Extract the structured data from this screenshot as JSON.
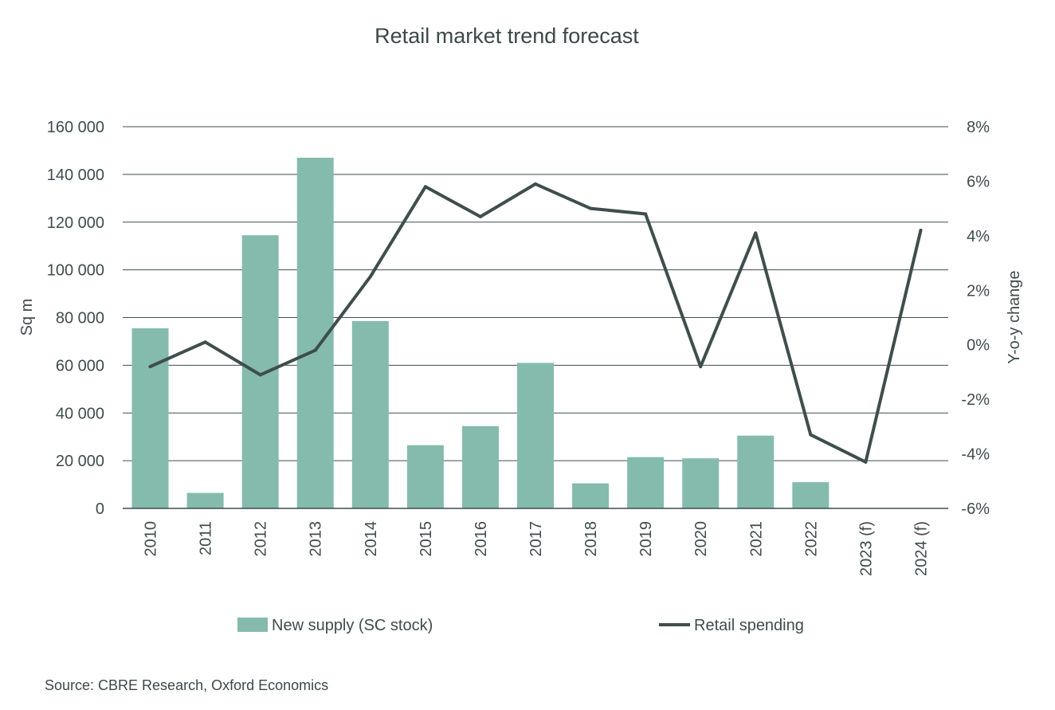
{
  "chart_data": {
    "type": "bar+line",
    "title": "Retail market trend forecast",
    "categories": [
      "2010",
      "2011",
      "2012",
      "2013",
      "2014",
      "2015",
      "2016",
      "2017",
      "2018",
      "2019",
      "2020",
      "2021",
      "2022",
      "2023 (f)",
      "2024 (f)"
    ],
    "series": [
      {
        "name": "New supply (SC stock)",
        "type": "bar",
        "axis": "left",
        "color": "#84bbad",
        "values": [
          75500,
          6500,
          114500,
          147000,
          78500,
          26500,
          34500,
          61000,
          10500,
          21500,
          21000,
          30500,
          11000,
          null,
          null
        ]
      },
      {
        "name": "Retail spending",
        "type": "line",
        "axis": "right",
        "color": "#3f4d4d",
        "values": [
          -0.8,
          0.1,
          -1.1,
          -0.2,
          2.5,
          5.8,
          4.7,
          5.9,
          5.0,
          4.8,
          -0.8,
          4.1,
          -3.3,
          -4.3,
          4.2
        ]
      }
    ],
    "left_axis": {
      "label": "Sq m",
      "ylim": [
        0,
        160000
      ],
      "ticks": [
        0,
        20000,
        40000,
        60000,
        80000,
        100000,
        120000,
        140000,
        160000
      ],
      "tick_labels": [
        "0",
        "20 000",
        "40 000",
        "60 000",
        "80 000",
        "100 000",
        "120 000",
        "140 000",
        "160 000"
      ]
    },
    "right_axis": {
      "label": "Y-o-y change",
      "ylim": [
        -6,
        8
      ],
      "ticks": [
        -6,
        -4,
        -2,
        0,
        2,
        4,
        6,
        8
      ],
      "tick_labels": [
        "-6%",
        "-4%",
        "-2%",
        "0%",
        "2%",
        "4%",
        "6%",
        "8%"
      ]
    },
    "grid": true,
    "legend": "bottom",
    "source": "Source: CBRE Research, Oxford Economics"
  }
}
